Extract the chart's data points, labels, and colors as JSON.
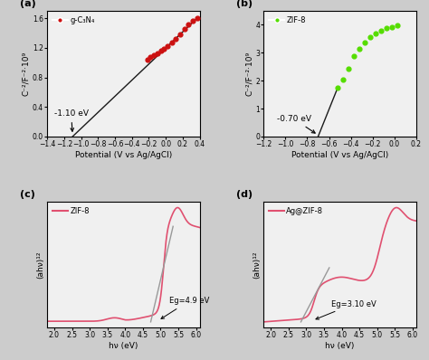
{
  "panel_a": {
    "label": "(a)",
    "legend": "g-C₃N₄",
    "dot_color": "#cc1111",
    "line_color": "#1a1a1a",
    "xlabel": "Potential (V vs Ag/AgCl)",
    "ylabel": "C⁻²/F⁻²·10⁹",
    "xlim": [
      -1.4,
      0.4
    ],
    "ylim": [
      0.0,
      1.7
    ],
    "xticks": [
      -1.4,
      -1.2,
      -1.0,
      -0.8,
      -0.6,
      -0.4,
      -0.2,
      0.0,
      0.2,
      0.4
    ],
    "yticks": [
      0.0,
      0.4,
      0.8,
      1.2,
      1.6
    ],
    "annotation": "-1.10 eV",
    "flatband": -1.1,
    "dot_x": [
      -0.22,
      -0.18,
      -0.14,
      -0.1,
      -0.06,
      -0.02,
      0.02,
      0.07,
      0.12,
      0.17,
      0.22,
      0.27,
      0.32,
      0.37
    ],
    "dot_y": [
      1.04,
      1.07,
      1.1,
      1.13,
      1.16,
      1.19,
      1.22,
      1.27,
      1.32,
      1.38,
      1.46,
      1.52,
      1.57,
      1.6
    ],
    "line_x": [
      -1.1,
      0.37
    ],
    "line_y": [
      0.0,
      1.6
    ]
  },
  "panel_b": {
    "label": "(b)",
    "legend": "ZIF-8",
    "dot_color": "#55dd00",
    "line_color": "#1a1a1a",
    "xlabel": "Potential (V vs Ag/AgCl)",
    "ylabel": "C⁻²/F⁻²·10⁹",
    "xlim": [
      -1.2,
      0.2
    ],
    "ylim": [
      0,
      4.5
    ],
    "xticks": [
      -1.2,
      -1.0,
      -0.8,
      -0.6,
      -0.4,
      -0.2,
      0.0,
      0.2
    ],
    "yticks": [
      0,
      1,
      2,
      3,
      4
    ],
    "annotation": "-0.70 eV",
    "flatband": -0.7,
    "dot_x": [
      -0.52,
      -0.47,
      -0.42,
      -0.37,
      -0.32,
      -0.27,
      -0.22,
      -0.17,
      -0.12,
      -0.07,
      -0.02,
      0.03
    ],
    "dot_y": [
      1.75,
      2.05,
      2.42,
      2.88,
      3.15,
      3.38,
      3.57,
      3.7,
      3.8,
      3.88,
      3.93,
      3.97
    ],
    "line_x": [
      -0.7,
      -0.52
    ],
    "line_y": [
      0.0,
      1.75
    ]
  },
  "panel_c": {
    "label": "(c)",
    "legend": "ZIF-8",
    "line_color": "#e05070",
    "tangent_color": "#999999",
    "xlabel": "hν (eV)",
    "ylabel": "(ahν)¹²",
    "xlim": [
      1.8,
      6.1
    ],
    "xticks": [
      2.0,
      2.5,
      3.0,
      3.5,
      4.0,
      4.5,
      5.0,
      5.5,
      6.0
    ],
    "annotation": "Eg=4.9 eV",
    "eg_x": 4.95,
    "tangent_line_x": [
      4.72,
      5.35
    ],
    "tangent_line_y": [
      0.05,
      0.82
    ]
  },
  "panel_d": {
    "label": "(d)",
    "legend": "Ag@ZIF-8",
    "line_color": "#e05070",
    "tangent_color": "#999999",
    "xlabel": "hν (eV)",
    "ylabel": "(ahν)¹²",
    "xlim": [
      1.8,
      6.1
    ],
    "xticks": [
      2.0,
      2.5,
      3.0,
      3.5,
      4.0,
      4.5,
      5.0,
      5.5,
      6.0
    ],
    "annotation": "Eg=3.10 eV",
    "eg_x": 3.2,
    "tangent_line_x": [
      2.85,
      3.65
    ],
    "tangent_line_y": [
      0.04,
      0.42
    ]
  },
  "bg_color": "#cccccc"
}
